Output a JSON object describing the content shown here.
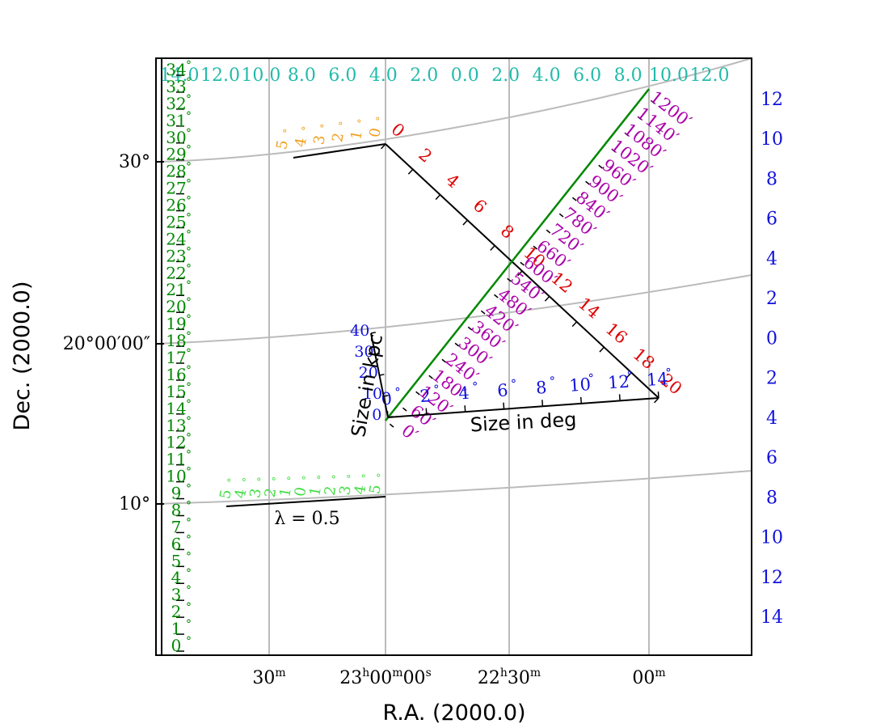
{
  "axes": {
    "x_label": "R.A. (2000.0)",
    "y_label": "Dec. (2000.0)",
    "x_ticks": [
      {
        "base": "30",
        "sup": "m"
      },
      {
        "base": "23",
        "sup": "h",
        "base2": "00",
        "sup2": "m",
        "base3": "00",
        "sup3": "s"
      },
      {
        "base": "22",
        "sup": "h",
        "base2": "30",
        "sup2": "m"
      },
      {
        "base": "00",
        "sup": "m"
      }
    ],
    "y_ticks": [
      "30°",
      "20°00′00″",
      "10°"
    ]
  },
  "colors": {
    "grid": "#bbbbbb",
    "frame": "#000000",
    "green": "#008800",
    "teal": "#22bbaa",
    "blue": "#1010dd",
    "red": "#dd0000",
    "magenta": "#aa00aa",
    "orange": "#f0a020",
    "lime": "#44dd44"
  },
  "top_ruler": {
    "labels": [
      "14.0",
      "12.0",
      "10.0",
      "8.0",
      "6.0",
      "4.0",
      "2.0",
      "0.0",
      "2.0",
      "4.0",
      "6.0",
      "8.0",
      "10.0",
      "12.0"
    ]
  },
  "left_ruler": {
    "labels": [
      "0",
      "1",
      "2",
      "3",
      "4",
      "5",
      "6",
      "7",
      "8",
      "9",
      "10",
      "11",
      "12",
      "13",
      "14",
      "15",
      "16",
      "17",
      "18",
      "19",
      "20",
      "21",
      "22",
      "23",
      "24",
      "25",
      "26",
      "27",
      "28",
      "29",
      "30",
      "31",
      "32",
      "33",
      "34"
    ]
  },
  "right_ruler": {
    "labels": [
      "12",
      "10",
      "8",
      "6",
      "4",
      "2",
      "0",
      "2",
      "4",
      "6",
      "8",
      "10",
      "12",
      "14"
    ]
  },
  "red_ruler": {
    "labels": [
      "0",
      "2",
      "4",
      "6",
      "8",
      "10",
      "12",
      "14",
      "16",
      "18",
      "20"
    ]
  },
  "magenta_ruler": {
    "labels": [
      "0′",
      "60′",
      "120′",
      "180′",
      "240′",
      "300′",
      "360′",
      "420′",
      "480′",
      "540′",
      "600′",
      "660′",
      "720′",
      "780′",
      "840′",
      "900′",
      "960′",
      "1020′",
      "1080′",
      "1140′",
      "1200′"
    ]
  },
  "deg_ruler": {
    "title": "Size in deg",
    "labels": [
      "0",
      "2",
      "4",
      "6",
      "8",
      "10",
      "12",
      "14"
    ]
  },
  "kpc_ruler": {
    "title": "Size in kpc",
    "labels": [
      "0",
      "10",
      "20",
      "30",
      "40"
    ]
  },
  "orange_ruler": {
    "labels": [
      "5",
      "4",
      "3",
      "2",
      "1",
      "0"
    ]
  },
  "lime_ruler": {
    "title": "λ = 0.5",
    "labels": [
      "5",
      "4",
      "3",
      "2",
      "1",
      "0",
      "1",
      "2",
      "3",
      "4",
      "5"
    ]
  }
}
